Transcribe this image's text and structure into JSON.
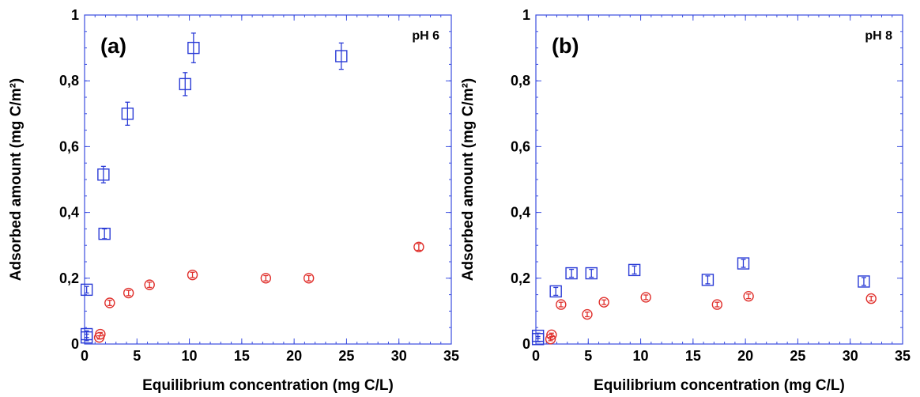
{
  "chart_data": [
    {
      "type": "scatter",
      "panel_label": "(a)",
      "annotation": "pH 6",
      "xlabel": "Equilibrium concentration (mg C/L)",
      "ylabel": "Adsorbed amount (mg C/m²)",
      "xlim": [
        0,
        35
      ],
      "ylim": [
        0,
        1
      ],
      "x_ticks": [
        "0",
        "5",
        "10",
        "15",
        "20",
        "25",
        "30",
        "35"
      ],
      "y_ticks": [
        "0",
        "0,2",
        "0,4",
        "0,6",
        "0,8",
        "1"
      ],
      "grid": false,
      "series": [
        {
          "marker": "square",
          "color": "#2a3bd6",
          "points": [
            {
              "x": 0.2,
              "y": 0.02,
              "err": 0.01
            },
            {
              "x": 0.2,
              "y": 0.03,
              "err": 0.01
            },
            {
              "x": 0.2,
              "y": 0.165,
              "err": 0.01
            },
            {
              "x": 1.9,
              "y": 0.335,
              "err": 0.015
            },
            {
              "x": 1.8,
              "y": 0.515,
              "err": 0.025
            },
            {
              "x": 4.1,
              "y": 0.7,
              "err": 0.035
            },
            {
              "x": 9.6,
              "y": 0.79,
              "err": 0.035
            },
            {
              "x": 10.4,
              "y": 0.9,
              "err": 0.045
            },
            {
              "x": 24.5,
              "y": 0.875,
              "err": 0.04
            }
          ]
        },
        {
          "marker": "circle",
          "color": "#e0302c",
          "points": [
            {
              "x": 1.4,
              "y": 0.02,
              "err": 0.005
            },
            {
              "x": 1.5,
              "y": 0.03,
              "err": 0.005
            },
            {
              "x": 2.4,
              "y": 0.125,
              "err": 0.008
            },
            {
              "x": 4.2,
              "y": 0.155,
              "err": 0.008
            },
            {
              "x": 6.2,
              "y": 0.18,
              "err": 0.008
            },
            {
              "x": 10.3,
              "y": 0.21,
              "err": 0.008
            },
            {
              "x": 17.3,
              "y": 0.2,
              "err": 0.008
            },
            {
              "x": 21.4,
              "y": 0.2,
              "err": 0.008
            },
            {
              "x": 31.9,
              "y": 0.295,
              "err": 0.01
            }
          ]
        }
      ]
    },
    {
      "type": "scatter",
      "panel_label": "(b)",
      "annotation": "pH 8",
      "xlabel": "Equilibrium concentration (mg C/L)",
      "ylabel": "Adsorbed amount (mg C/m²)",
      "xlim": [
        0,
        35
      ],
      "ylim": [
        0,
        1
      ],
      "x_ticks": [
        "0",
        "5",
        "10",
        "15",
        "20",
        "25",
        "30",
        "35"
      ],
      "y_ticks": [
        "0",
        "0,2",
        "0,4",
        "0,6",
        "0,8",
        "1"
      ],
      "grid": false,
      "series": [
        {
          "marker": "square",
          "color": "#2a3bd6",
          "points": [
            {
              "x": 0.2,
              "y": 0.015,
              "err": 0.008
            },
            {
              "x": 0.2,
              "y": 0.025,
              "err": 0.008
            },
            {
              "x": 1.9,
              "y": 0.16,
              "err": 0.012
            },
            {
              "x": 3.4,
              "y": 0.215,
              "err": 0.012
            },
            {
              "x": 5.3,
              "y": 0.215,
              "err": 0.012
            },
            {
              "x": 9.4,
              "y": 0.225,
              "err": 0.012
            },
            {
              "x": 16.4,
              "y": 0.195,
              "err": 0.012
            },
            {
              "x": 19.8,
              "y": 0.245,
              "err": 0.012
            },
            {
              "x": 31.3,
              "y": 0.19,
              "err": 0.012
            }
          ]
        },
        {
          "marker": "circle",
          "color": "#e0302c",
          "points": [
            {
              "x": 1.4,
              "y": 0.015,
              "err": 0.005
            },
            {
              "x": 1.5,
              "y": 0.028,
              "err": 0.005
            },
            {
              "x": 2.4,
              "y": 0.12,
              "err": 0.007
            },
            {
              "x": 4.9,
              "y": 0.09,
              "err": 0.007
            },
            {
              "x": 6.5,
              "y": 0.127,
              "err": 0.007
            },
            {
              "x": 10.5,
              "y": 0.142,
              "err": 0.007
            },
            {
              "x": 17.3,
              "y": 0.12,
              "err": 0.007
            },
            {
              "x": 20.3,
              "y": 0.145,
              "err": 0.007
            },
            {
              "x": 32.0,
              "y": 0.138,
              "err": 0.007
            }
          ]
        }
      ]
    }
  ]
}
